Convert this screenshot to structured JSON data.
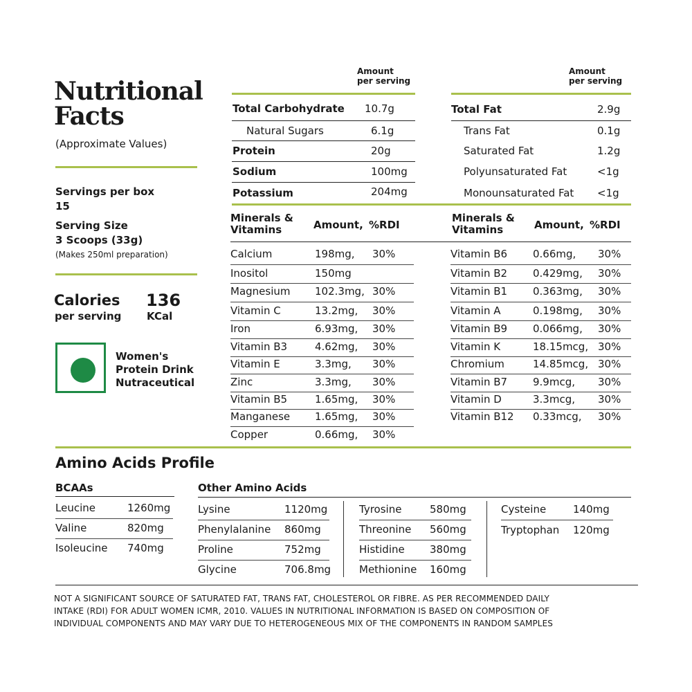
{
  "left": {
    "title_line1": "Nutritional",
    "title_line2": "Facts",
    "subtitle": "(Approximate Values)",
    "servings_label": "Servings per box",
    "servings_value": "15",
    "serving_size_label": "Serving Size",
    "serving_size_value": "3 Scoops (33g)",
    "serving_size_note": "(Makes 250ml preparation)",
    "calories_label": "Calories",
    "calories_sub": "per serving",
    "calories_value": "136",
    "calories_unit": "KCal",
    "category_line1": "Women's",
    "category_line2": "Protein Drink",
    "category_line3": "Nutraceutical",
    "veg_mark_color": "#1e8a45"
  },
  "macro_header": {
    "amount_line1": "Amount",
    "amount_line2": "per serving"
  },
  "carbs": [
    {
      "name": "Total Carbohydrate",
      "value": "10.7g"
    },
    {
      "name": "Natural Sugars",
      "value": "6.1g"
    },
    {
      "name": "Protein",
      "value": "20g"
    },
    {
      "name": "Sodium",
      "value": "100mg"
    },
    {
      "name": "Potassium",
      "value": "204mg"
    }
  ],
  "fats": [
    {
      "name": "Total Fat",
      "value": "2.9g"
    },
    {
      "name": "Trans Fat",
      "value": "0.1g"
    },
    {
      "name": "Saturated Fat",
      "value": "1.2g"
    },
    {
      "name": "Polyunsaturated Fat",
      "value": "<1g"
    },
    {
      "name": "Monounsaturated Fat",
      "value": "<1g"
    }
  ],
  "minerals_header": {
    "name_line1": "Minerals &",
    "name_line2": "Vitamins",
    "amount": "Amount,",
    "rdi": "%RDI"
  },
  "minerals_left": [
    {
      "name": "Calcium",
      "amount": "198mg,",
      "rdi": "30%"
    },
    {
      "name": "Inositol",
      "amount": "150mg",
      "rdi": ""
    },
    {
      "name": "Magnesium",
      "amount": "102.3mg,",
      "rdi": "30%"
    },
    {
      "name": "Vitamin C",
      "amount": "13.2mg,",
      "rdi": "30%"
    },
    {
      "name": "Iron",
      "amount": "6.93mg,",
      "rdi": "30%"
    },
    {
      "name": "Vitamin B3",
      "amount": "4.62mg,",
      "rdi": "30%"
    },
    {
      "name": "Vitamin E",
      "amount": "3.3mg,",
      "rdi": "30%"
    },
    {
      "name": "Zinc",
      "amount": "3.3mg,",
      "rdi": "30%"
    },
    {
      "name": "Vitamin B5",
      "amount": "1.65mg,",
      "rdi": "30%"
    },
    {
      "name": "Manganese",
      "amount": "1.65mg,",
      "rdi": "30%"
    },
    {
      "name": "Copper",
      "amount": "0.66mg,",
      "rdi": "30%"
    }
  ],
  "minerals_right": [
    {
      "name": "Vitamin B6",
      "amount": "0.66mg,",
      "rdi": "30%"
    },
    {
      "name": "Vitamin B2",
      "amount": "0.429mg,",
      "rdi": "30%"
    },
    {
      "name": "Vitamin B1",
      "amount": "0.363mg,",
      "rdi": "30%"
    },
    {
      "name": "Vitamin A",
      "amount": "0.198mg,",
      "rdi": "30%"
    },
    {
      "name": "Vitamin B9",
      "amount": "0.066mg,",
      "rdi": "30%"
    },
    {
      "name": "Vitamin K",
      "amount": "18.15mcg,",
      "rdi": "30%"
    },
    {
      "name": "Chromium",
      "amount": "14.85mcg,",
      "rdi": "30%"
    },
    {
      "name": "Vitamin B7",
      "amount": "9.9mcg,",
      "rdi": "30%"
    },
    {
      "name": "Vitamin D",
      "amount": "3.3mcg,",
      "rdi": "30%"
    },
    {
      "name": "Vitamin B12",
      "amount": "0.33mcg,",
      "rdi": "30%"
    }
  ],
  "amino": {
    "title": "Amino Acids Profile",
    "bcaa_title": "BCAAs",
    "other_title": "Other Amino Acids",
    "bcaas": [
      {
        "name": "Leucine",
        "value": "1260mg"
      },
      {
        "name": "Valine",
        "value": "820mg"
      },
      {
        "name": "Isoleucine",
        "value": "740mg"
      }
    ],
    "col1": [
      {
        "name": "Lysine",
        "value": "1120mg"
      },
      {
        "name": "Phenylalanine",
        "value": "860mg"
      },
      {
        "name": "Proline",
        "value": "752mg"
      },
      {
        "name": "Glycine",
        "value": "706.8mg"
      }
    ],
    "col2": [
      {
        "name": "Tyrosine",
        "value": "580mg"
      },
      {
        "name": "Threonine",
        "value": "560mg"
      },
      {
        "name": "Histidine",
        "value": "380mg"
      },
      {
        "name": "Methionine",
        "value": "160mg"
      }
    ],
    "col3": [
      {
        "name": "Cysteine",
        "value": "140mg"
      },
      {
        "name": "Tryptophan",
        "value": "120mg"
      }
    ]
  },
  "footer": {
    "line1": "NOT A SIGNIFICANT SOURCE OF SATURATED FAT, TRANS FAT, CHOLESTEROL OR FIBRE. AS PER RECOMMENDED DAILY",
    "line2": "INTAKE (RDI) FOR ADULT WOMEN ICMR, 2010. VALUES IN NUTRITIONAL INFORMATION IS BASED ON COMPOSITION OF",
    "line3": "INDIVIDUAL COMPONENTS AND MAY VARY DUE TO HETEROGENEOUS MIX OF THE COMPONENTS IN RANDOM SAMPLES"
  }
}
